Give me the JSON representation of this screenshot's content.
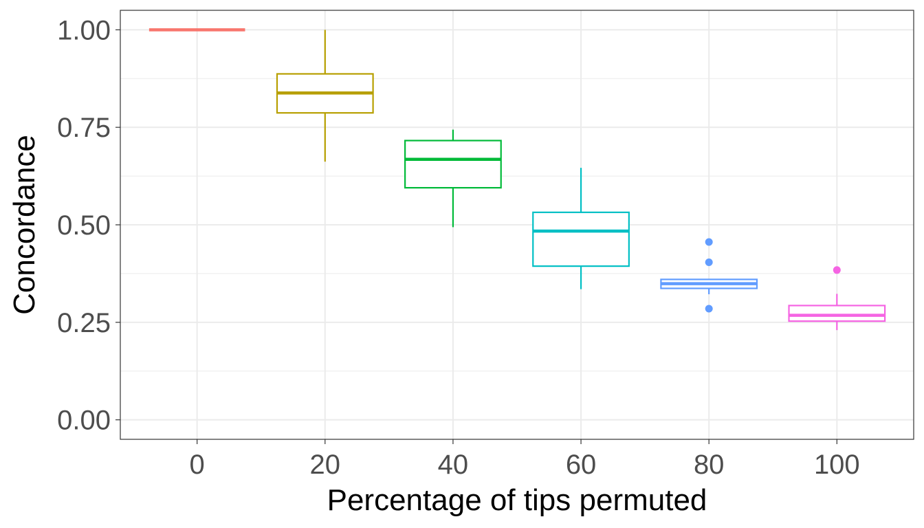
{
  "chart_data": {
    "type": "boxplot",
    "xlabel": "Percentage of tips permuted",
    "ylabel": "Concordance",
    "ylim": [
      -0.05,
      1.05
    ],
    "grid": true,
    "legend": "none",
    "y_ticks": [
      0.0,
      0.25,
      0.5,
      0.75,
      1.0
    ],
    "y_tick_labels": [
      "0.00",
      "0.25",
      "0.50",
      "0.75",
      "1.00"
    ],
    "categories": [
      "0",
      "20",
      "40",
      "60",
      "80",
      "100"
    ],
    "boxes": [
      {
        "category": "0",
        "color": "#F8766D",
        "min": 1.0,
        "q1": 1.0,
        "median": 1.0,
        "q3": 1.0,
        "max": 1.0,
        "outliers": []
      },
      {
        "category": "20",
        "color": "#B79F00",
        "min": 0.662,
        "q1": 0.787,
        "median": 0.838,
        "q3": 0.887,
        "max": 1.0,
        "outliers": []
      },
      {
        "category": "40",
        "color": "#00BA38",
        "min": 0.494,
        "q1": 0.595,
        "median": 0.668,
        "q3": 0.716,
        "max": 0.744,
        "outliers": []
      },
      {
        "category": "60",
        "color": "#00BFC4",
        "min": 0.335,
        "q1": 0.394,
        "median": 0.484,
        "q3": 0.532,
        "max": 0.646,
        "outliers": []
      },
      {
        "category": "80",
        "color": "#619CFF",
        "min": 0.322,
        "q1": 0.337,
        "median": 0.349,
        "q3": 0.36,
        "max": 0.36,
        "outliers": [
          0.456,
          0.404,
          0.285
        ]
      },
      {
        "category": "100",
        "color": "#F564E3",
        "min": 0.23,
        "q1": 0.253,
        "median": 0.268,
        "q3": 0.293,
        "max": 0.323,
        "outliers": [
          0.384
        ]
      }
    ]
  }
}
